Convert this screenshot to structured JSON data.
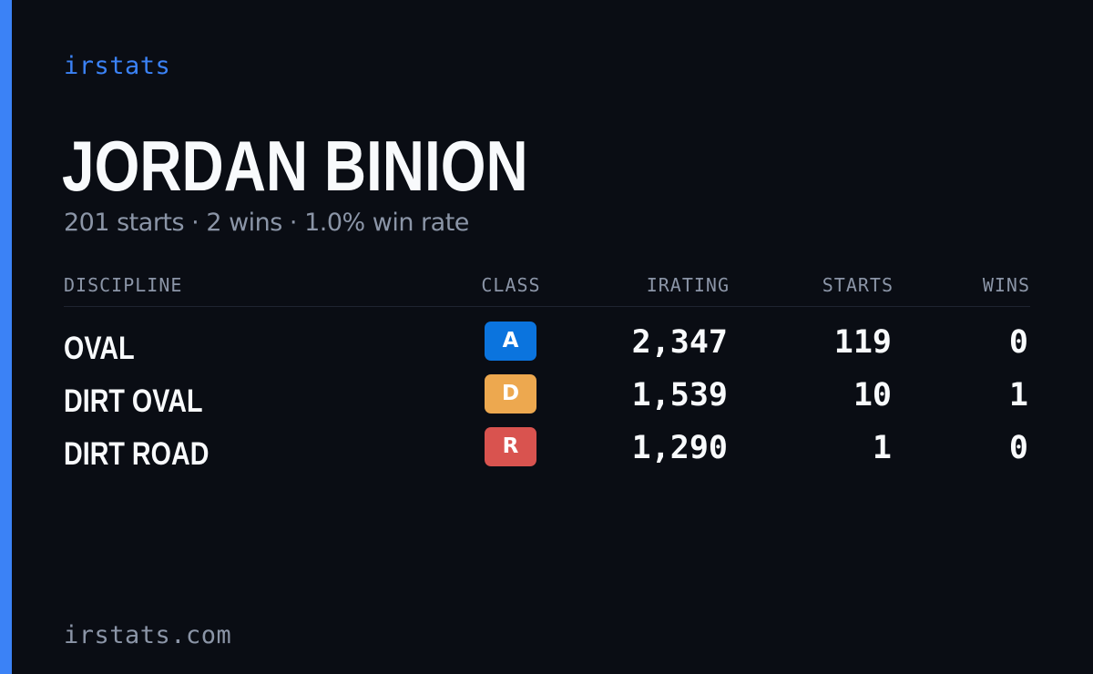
{
  "brand": "irstats",
  "driver": {
    "name": "JORDAN BINION",
    "summary": "201 starts · 2 wins · 1.0% win rate"
  },
  "table": {
    "headers": {
      "discipline": "DISCIPLINE",
      "class": "CLASS",
      "irating": "IRATING",
      "starts": "STARTS",
      "wins": "WINS"
    },
    "rows": [
      {
        "discipline": "OVAL",
        "class": "A",
        "class_color": "#0b74de",
        "irating": "2,347",
        "starts": "119",
        "wins": "0"
      },
      {
        "discipline": "DIRT OVAL",
        "class": "D",
        "class_color": "#eda84f",
        "irating": "1,539",
        "starts": "10",
        "wins": "1"
      },
      {
        "discipline": "DIRT ROAD",
        "class": "R",
        "class_color": "#d9534f",
        "irating": "1,290",
        "starts": "1",
        "wins": "0"
      }
    ]
  },
  "footer": {
    "site": "irstats.com"
  },
  "colors": {
    "accent": "#3b82f6",
    "background": "#0a0d14",
    "muted_text": "#8b95a7",
    "primary_text": "#f8fafc"
  }
}
